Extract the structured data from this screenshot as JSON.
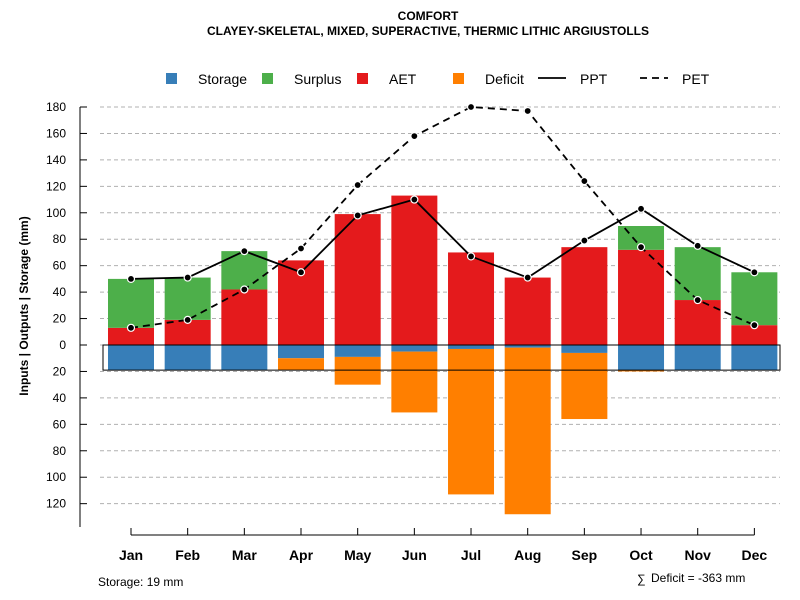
{
  "chart_data": {
    "type": "bar",
    "title": "COMFORT",
    "subtitle": "CLAYEY-SKELETAL, MIXED, SUPERACTIVE, THERMIC LITHIC ARGIUSTOLLS",
    "ylabel": "Inputs | Outputs | Storage    (mm)",
    "ylim": [
      -128,
      180
    ],
    "y_ticks": [
      180,
      160,
      140,
      120,
      100,
      80,
      60,
      40,
      20,
      0,
      -20,
      -40,
      -60,
      -80,
      -100,
      -120
    ],
    "y_tick_labels": [
      "180",
      "160",
      "140",
      "120",
      "100",
      "80",
      "60",
      "40",
      "20",
      "0",
      "20",
      "40",
      "60",
      "80",
      "100",
      "120"
    ],
    "categories": [
      "Jan",
      "Feb",
      "Mar",
      "Apr",
      "May",
      "Jun",
      "Jul",
      "Aug",
      "Sep",
      "Oct",
      "Nov",
      "Dec"
    ],
    "series": [
      {
        "name": "Storage",
        "color": "#377EB8",
        "values": [
          19,
          19,
          19,
          10,
          9,
          5,
          3,
          2,
          6,
          19,
          19,
          19
        ]
      },
      {
        "name": "Surplus",
        "color": "#4DAF4A",
        "values": [
          37,
          32,
          29,
          0,
          0,
          0,
          0,
          0,
          0,
          18,
          40,
          40
        ]
      },
      {
        "name": "AET",
        "color": "#E41A1C",
        "values": [
          13,
          19,
          42,
          64,
          99,
          113,
          70,
          51,
          74,
          72,
          34,
          15
        ]
      },
      {
        "name": "Deficit",
        "color": "#FF7F00",
        "values": [
          0,
          0,
          0,
          9,
          21,
          46,
          110,
          126,
          50,
          1,
          0,
          0
        ]
      },
      {
        "name": "PPT",
        "style": "solid",
        "values": [
          50,
          51,
          71,
          55,
          98,
          110,
          67,
          51,
          79,
          103,
          75,
          55
        ]
      },
      {
        "name": "PET",
        "style": "dashed",
        "values": [
          13,
          19,
          42,
          73,
          121,
          158,
          180,
          177,
          124,
          74,
          34,
          15
        ]
      }
    ],
    "legend_position": "top",
    "grid": true,
    "storage_capacity": 19
  },
  "footer": {
    "storage_note": "Storage: 19 mm",
    "deficit_symbol": "∑",
    "deficit_note": "Deficit = -363 mm"
  }
}
